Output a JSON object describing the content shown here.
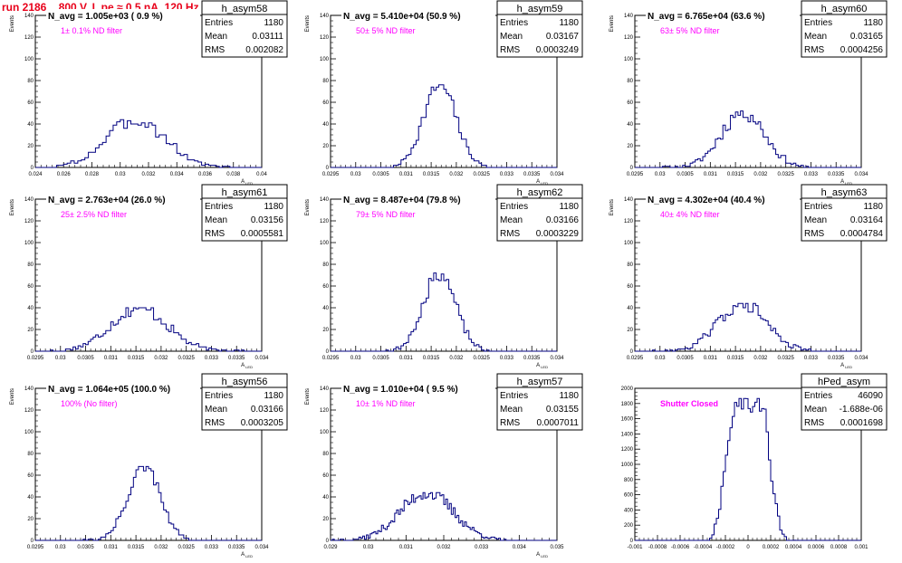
{
  "run_title": "run 2186,   800 V, I_pe ≈ 0.5 nA, 120 Hz",
  "colors": {
    "hist": "#000080",
    "annotation": "#ff00ff",
    "run_title": "#e8001a"
  },
  "chart_data": [
    {
      "type": "histogram",
      "name": "h_asym58",
      "title": "N_avg = 1.005e+03 ( 0.9 %)",
      "annotation": "1± 0.1% ND filter",
      "stats": {
        "entries_label": "Entries",
        "entries": "1180",
        "mean_label": "Mean",
        "mean": "0.03111",
        "rms_label": "RMS",
        "rms": "0.002082"
      },
      "xlabel": "A_LED",
      "ylabel": "Events",
      "xlim": [
        0.024,
        0.04
      ],
      "ylim": [
        0,
        140
      ],
      "xticks": [
        "0.024",
        "0.026",
        "0.028",
        "0.03",
        "0.032",
        "0.034",
        "0.036",
        "0.038",
        "0.04"
      ],
      "yticks": [
        "0",
        "20",
        "40",
        "60",
        "80",
        "100",
        "120",
        "140"
      ],
      "bins": 64,
      "mean_val": 0.03111,
      "rms_val": 0.002082,
      "peak": 44,
      "shape": "rough",
      "seed": 3
    },
    {
      "type": "histogram",
      "name": "h_asym59",
      "title": "N_avg = 5.410e+04 (50.9 %)",
      "annotation": "50± 5% ND filter",
      "stats": {
        "entries_label": "Entries",
        "entries": "1180",
        "mean_label": "Mean",
        "mean": "0.03167",
        "rms_label": "RMS",
        "rms": "0.0003249"
      },
      "xlabel": "A_LED",
      "ylabel": "Events",
      "xlim": [
        0.0295,
        0.034
      ],
      "ylim": [
        0,
        140
      ],
      "xticks": [
        "0.0295",
        "0.03",
        "0.0305",
        "0.031",
        "0.0315",
        "0.032",
        "0.0325",
        "0.033",
        "0.0335",
        "0.034"
      ],
      "yticks": [
        "0",
        "20",
        "40",
        "60",
        "80",
        "100",
        "120",
        "140"
      ],
      "bins": 90,
      "mean_val": 0.03167,
      "rms_val": 0.0003249,
      "peak": 76,
      "shape": "normal",
      "seed": 7
    },
    {
      "type": "histogram",
      "name": "h_asym60",
      "title": "N_avg = 6.765e+04 (63.6 %)",
      "annotation": "63± 5% ND filter",
      "stats": {
        "entries_label": "Entries",
        "entries": "1180",
        "mean_label": "Mean",
        "mean": "0.03165",
        "rms_label": "RMS",
        "rms": "0.0004256"
      },
      "xlabel": "A_LED",
      "ylabel": "Events",
      "xlim": [
        0.0295,
        0.034
      ],
      "ylim": [
        0,
        140
      ],
      "xticks": [
        "0.0295",
        "0.03",
        "0.0305",
        "0.031",
        "0.0315",
        "0.032",
        "0.0325",
        "0.033",
        "0.0335",
        "0.034"
      ],
      "yticks": [
        "0",
        "20",
        "40",
        "60",
        "80",
        "100",
        "120",
        "140"
      ],
      "bins": 90,
      "mean_val": 0.03165,
      "rms_val": 0.0004256,
      "peak": 52,
      "shape": "rough",
      "seed": 11
    },
    {
      "type": "histogram",
      "name": "h_asym61",
      "title": "N_avg = 2.763e+04 (26.0 %)",
      "annotation": "25± 2.5% ND filter",
      "stats": {
        "entries_label": "Entries",
        "entries": "1180",
        "mean_label": "Mean",
        "mean": "0.03156",
        "rms_label": "RMS",
        "rms": "0.0005581"
      },
      "xlabel": "A_LED",
      "ylabel": "Events",
      "xlim": [
        0.0295,
        0.034
      ],
      "ylim": [
        0,
        140
      ],
      "xticks": [
        "0.0295",
        "0.03",
        "0.0305",
        "0.031",
        "0.0315",
        "0.032",
        "0.0325",
        "0.033",
        "0.0335",
        "0.034"
      ],
      "yticks": [
        "0",
        "20",
        "40",
        "60",
        "80",
        "100",
        "120",
        "140"
      ],
      "bins": 90,
      "mean_val": 0.03156,
      "rms_val": 0.0005581,
      "peak": 40,
      "shape": "rough",
      "seed": 17
    },
    {
      "type": "histogram",
      "name": "h_asym62",
      "title": "N_avg = 8.487e+04 (79.8 %)",
      "annotation": "79± 5% ND filter",
      "stats": {
        "entries_label": "Entries",
        "entries": "1180",
        "mean_label": "Mean",
        "mean": "0.03166",
        "rms_label": "RMS",
        "rms": "0.0003229"
      },
      "xlabel": "A_LED",
      "ylabel": "Events",
      "xlim": [
        0.0295,
        0.034
      ],
      "ylim": [
        0,
        140
      ],
      "xticks": [
        "0.0295",
        "0.03",
        "0.0305",
        "0.031",
        "0.0315",
        "0.032",
        "0.0325",
        "0.033",
        "0.0335",
        "0.034"
      ],
      "yticks": [
        "0",
        "20",
        "40",
        "60",
        "80",
        "100",
        "120",
        "140"
      ],
      "bins": 90,
      "mean_val": 0.03166,
      "rms_val": 0.0003229,
      "peak": 72,
      "shape": "normal",
      "seed": 23
    },
    {
      "type": "histogram",
      "name": "h_asym63",
      "title": "N_avg = 4.302e+04 (40.4 %)",
      "annotation": "40± 4% ND filter",
      "stats": {
        "entries_label": "Entries",
        "entries": "1180",
        "mean_label": "Mean",
        "mean": "0.03164",
        "rms_label": "RMS",
        "rms": "0.0004784"
      },
      "xlabel": "A_LED",
      "ylabel": "Events",
      "xlim": [
        0.0295,
        0.034
      ],
      "ylim": [
        0,
        140
      ],
      "xticks": [
        "0.0295",
        "0.03",
        "0.0305",
        "0.031",
        "0.0315",
        "0.032",
        "0.0325",
        "0.033",
        "0.0335",
        "0.034"
      ],
      "yticks": [
        "0",
        "20",
        "40",
        "60",
        "80",
        "100",
        "120",
        "140"
      ],
      "bins": 90,
      "mean_val": 0.03164,
      "rms_val": 0.0004784,
      "peak": 44,
      "shape": "rough",
      "seed": 29
    },
    {
      "type": "histogram",
      "name": "h_asym56",
      "title": "N_avg = 1.064e+05 (100.0 %)",
      "annotation": "100% (No filter)",
      "stats": {
        "entries_label": "Entries",
        "entries": "1180",
        "mean_label": "Mean",
        "mean": "0.03166",
        "rms_label": "RMS",
        "rms": "0.0003205"
      },
      "xlabel": "A_LED",
      "ylabel": "Events",
      "xlim": [
        0.0295,
        0.034
      ],
      "ylim": [
        0,
        140
      ],
      "xticks": [
        "0.0295",
        "0.03",
        "0.0305",
        "0.031",
        "0.0315",
        "0.032",
        "0.0325",
        "0.033",
        "0.0335",
        "0.034"
      ],
      "yticks": [
        "0",
        "20",
        "40",
        "60",
        "80",
        "100",
        "120",
        "140"
      ],
      "bins": 90,
      "mean_val": 0.03166,
      "rms_val": 0.0003205,
      "peak": 68,
      "shape": "normal",
      "seed": 31
    },
    {
      "type": "histogram",
      "name": "h_asym57",
      "title": "N_avg = 1.010e+04 ( 9.5 %)",
      "annotation": "10± 1% ND filter",
      "stats": {
        "entries_label": "Entries",
        "entries": "1180",
        "mean_label": "Mean",
        "mean": "0.03155",
        "rms_label": "RMS",
        "rms": "0.0007011"
      },
      "xlabel": "A_LED",
      "ylabel": "Events",
      "xlim": [
        0.029,
        0.035
      ],
      "ylim": [
        0,
        140
      ],
      "xticks": [
        "0.029",
        "0.03",
        "0.031",
        "0.032",
        "0.033",
        "0.034",
        "0.035"
      ],
      "yticks": [
        "0",
        "20",
        "40",
        "60",
        "80",
        "100",
        "120",
        "140"
      ],
      "bins": 120,
      "mean_val": 0.03155,
      "rms_val": 0.0007011,
      "peak": 44,
      "shape": "rough",
      "seed": 37
    },
    {
      "type": "histogram",
      "name": "hPed_asym",
      "title": "",
      "annotation": "Shutter Closed",
      "stats": {
        "entries_label": "Entries",
        "entries": "46090",
        "mean_label": "Mean",
        "mean": "-1.688e-06",
        "rms_label": "RMS",
        "rms": "0.0001698"
      },
      "xlabel": "",
      "ylabel": "",
      "xlim": [
        -0.001,
        0.001
      ],
      "ylim": [
        0,
        2100
      ],
      "xticks": [
        "-0.001",
        "-0.0008",
        "-0.0006",
        "-0.0004",
        "-0.0002",
        "0",
        "0.0002",
        "0.0004",
        "0.0006",
        "0.0008",
        "0.001"
      ],
      "yticks": [
        "0",
        "200",
        "400",
        "600",
        "800",
        "1000",
        "1200",
        "1400",
        "1600",
        "1800",
        "2000"
      ],
      "bins": 100,
      "mean_val": 0,
      "rms_val": 0.0001698,
      "peak": 1960,
      "shape": "double",
      "seed": 41
    }
  ]
}
